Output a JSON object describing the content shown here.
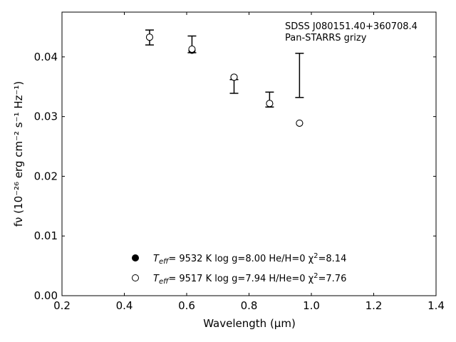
{
  "chart_data": {
    "type": "scatter",
    "title": "",
    "annotations": [
      "SDSS J080151.40+360708.4",
      "Pan-STARRS grizy"
    ],
    "xlabel": "Wavelength (μm)",
    "ylabel": "fν (10⁻²⁶ erg cm⁻² s⁻¹ Hz⁻¹)",
    "xlim": [
      0.2,
      1.4
    ],
    "ylim": [
      0.0,
      0.0475
    ],
    "xticks": [
      0.2,
      0.4,
      0.6,
      0.8,
      1.0,
      1.2,
      1.4
    ],
    "xtick_labels": [
      "0.2",
      "0.4",
      "0.6",
      "0.8",
      "1.0",
      "1.2",
      "1.4"
    ],
    "yticks": [
      0.0,
      0.01,
      0.02,
      0.03,
      0.04
    ],
    "ytick_labels": [
      "0.00",
      "0.01",
      "0.02",
      "0.03",
      "0.04"
    ],
    "grid": false,
    "legend_placement": "lower-center",
    "observed": {
      "x": [
        0.481,
        0.617,
        0.752,
        0.866,
        0.962
      ],
      "y_low": [
        0.042,
        0.0407,
        0.0339,
        0.0316,
        0.0332
      ],
      "y_high": [
        0.0445,
        0.0435,
        0.0362,
        0.0341,
        0.0406
      ],
      "y_center": [
        0.04325,
        0.0421,
        0.03505,
        0.03285,
        0.0369
      ],
      "color": "#000000"
    },
    "series": [
      {
        "label_parts": [
          "T",
          "eff",
          "=  9532 K  log g=8.00  He/H=0  χ",
          "2",
          "=8.14"
        ],
        "marker": "filled-circle",
        "x": [
          0.481,
          0.617,
          0.752,
          0.866,
          0.962
        ],
        "y": [
          0.0433,
          0.0411,
          0.0366,
          0.0322,
          0.0289
        ]
      },
      {
        "label_parts": [
          "T",
          "eff",
          "=  9517 K  log g=7.94  H/He=0  χ",
          "2",
          "=7.76"
        ],
        "marker": "open-circle",
        "x": [
          0.481,
          0.617,
          0.752,
          0.866,
          0.962
        ],
        "y": [
          0.0433,
          0.0413,
          0.0366,
          0.0322,
          0.0289
        ]
      }
    ]
  }
}
